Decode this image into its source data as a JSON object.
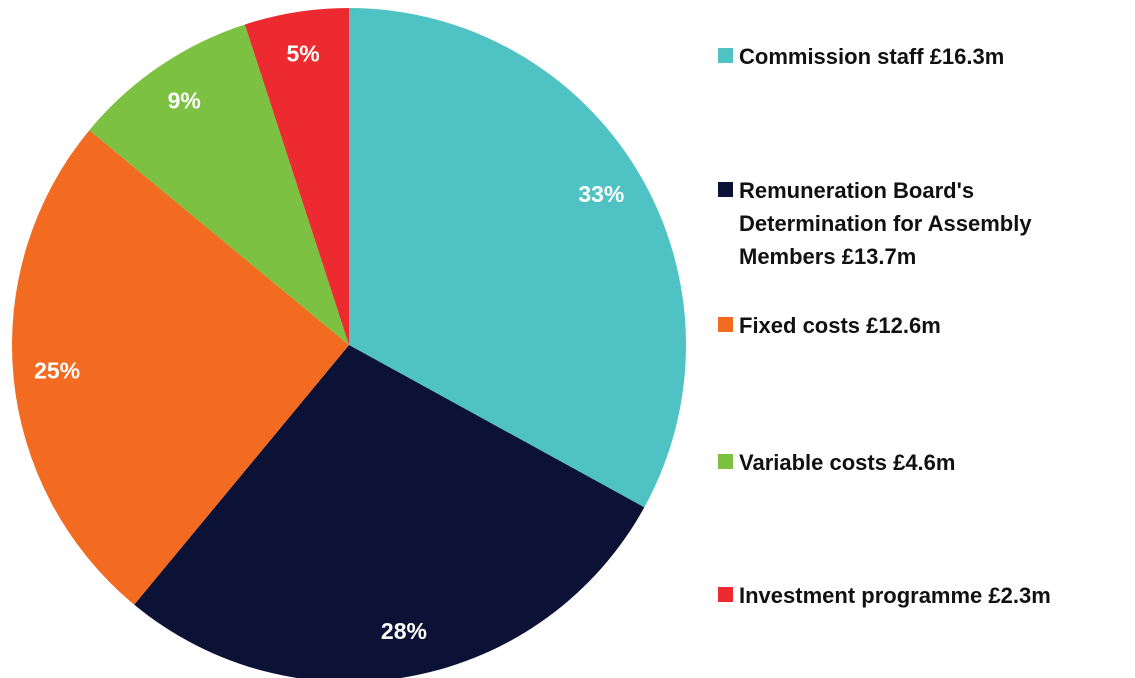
{
  "chart_data": {
    "type": "pie",
    "categories": [
      "Commission staff £16.3m",
      "Remuneration Board's Determination for Assembly Members £13.7m",
      "Fixed costs £12.6m",
      "Variable costs £4.6m",
      "Investment programme £2.3m"
    ],
    "values": [
      33,
      28,
      25,
      9,
      5
    ],
    "value_labels": [
      "33%",
      "28%",
      "25%",
      "9%",
      "5%"
    ],
    "colors": [
      "#4fc3c3",
      "#0b1236",
      "#f26b21",
      "#7cc142",
      "#ec2a2f"
    ],
    "legend": "right"
  }
}
